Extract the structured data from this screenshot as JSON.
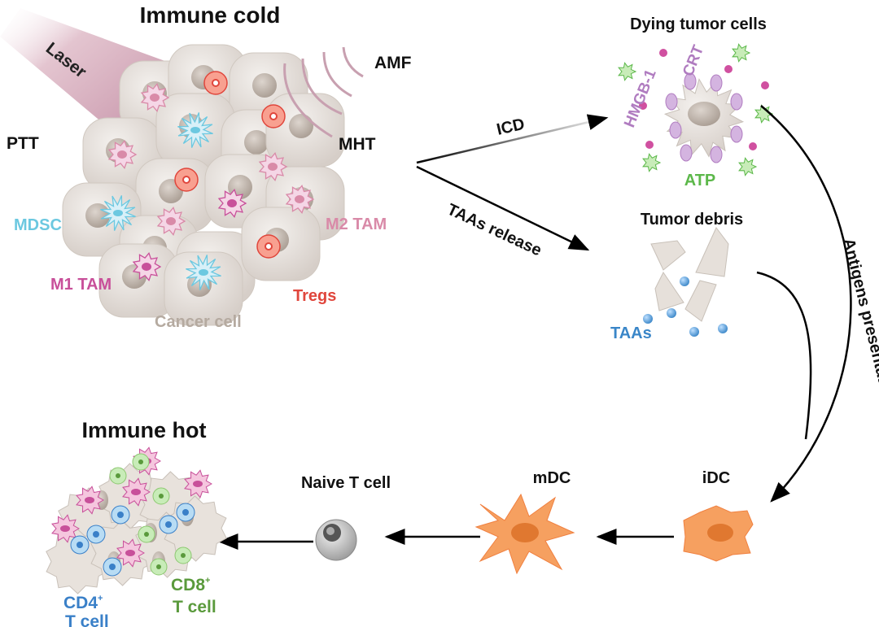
{
  "diagram": {
    "cold": {
      "title": "Immune cold",
      "laser": "Laser",
      "ptt": "PTT",
      "amf": "AMF",
      "mht": "MHT",
      "mdsc": "MDSC",
      "m2_tam": "M2 TAM",
      "m1_tam": "M1 TAM",
      "tregs": "Tregs",
      "cancer_cell": "Cancer cell"
    },
    "arrows": {
      "icd": "ICD",
      "taas_release": "TAAs release",
      "antigens_presentation": "Antigens presentation"
    },
    "dying": {
      "title": "Dying tumor cells",
      "hmgb1": "HMGB-1",
      "crt": "CRT",
      "atp": "ATP"
    },
    "debris": {
      "title": "Tumor debris",
      "taas": "TAAs"
    },
    "idc": "iDC",
    "mdc": "mDC",
    "naive": "Naive T cell",
    "hot": {
      "title": "Immune hot",
      "cd4": "CD4",
      "cd8": "CD8",
      "sup": "+",
      "tcell": "T cell"
    },
    "colors": {
      "mdsc": "#6cc8e0",
      "m2_tam": "#d98aa8",
      "m1_tam": "#c8509a",
      "tregs": "#e0463c",
      "cancer_cell": "#b5aaa0",
      "hmgb1": "#b07cc0",
      "atp": "#5cb84a",
      "taas": "#3a86c8",
      "dc": "#f6a060",
      "cd4": "#3a80c8",
      "cd8": "#5a9a3c"
    }
  }
}
